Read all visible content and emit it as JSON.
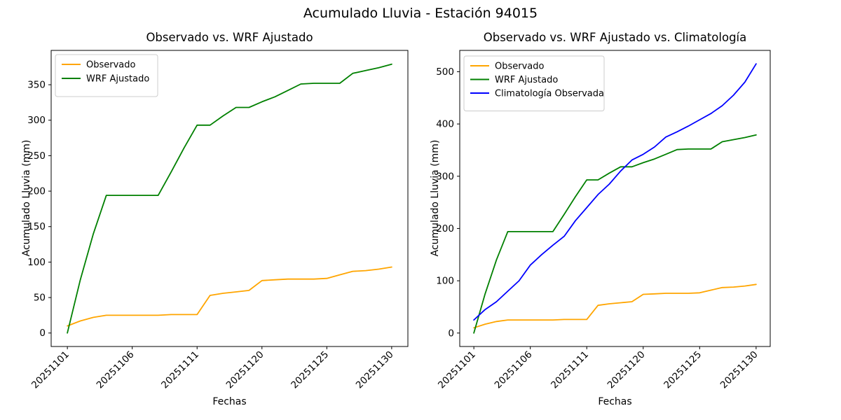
{
  "figure": {
    "suptitle": "Acumulado Lluvia - Estación 94015"
  },
  "colors": {
    "observado": "#ffa500",
    "wrf_ajustado": "#008000",
    "climatologia": "#0000ff",
    "spine": "#000000",
    "legend_border": "#cccccc",
    "background": "#ffffff"
  },
  "chart_data": [
    {
      "type": "line",
      "title": "Observado vs. WRF Ajustado",
      "xlabel": "Fechas",
      "ylabel": "Acumulado Lluvia (mm)",
      "x_type": "category",
      "x_count": 26,
      "xtick_positions": [
        0,
        5,
        10,
        15,
        20,
        25
      ],
      "xtick_labels": [
        "20251101",
        "20251106",
        "20251111",
        "20251120",
        "20251125",
        "20251130"
      ],
      "xtick_rotation": 45,
      "yticks": [
        0,
        50,
        100,
        150,
        200,
        250,
        300,
        350
      ],
      "grid": false,
      "legend_position": "upper left",
      "series": [
        {
          "name": "Observado",
          "color": "#ffa500",
          "values": [
            10,
            17,
            22,
            25,
            25,
            25,
            25,
            25,
            26,
            26,
            26,
            53,
            56,
            58,
            60,
            74,
            75,
            76,
            76,
            76,
            77,
            82,
            87,
            88,
            90,
            93
          ]
        },
        {
          "name": "WRF Ajustado",
          "color": "#008000",
          "values": [
            0,
            75,
            140,
            194,
            194,
            194,
            194,
            194,
            227,
            261,
            293,
            293,
            306,
            318,
            318,
            326,
            333,
            342,
            351,
            352,
            352,
            352,
            366,
            370,
            374,
            379
          ]
        }
      ]
    },
    {
      "type": "line",
      "title": "Observado vs. WRF Ajustado vs. Climatología",
      "xlabel": "Fechas",
      "ylabel": "Acumulado Lluvia (mm)",
      "x_type": "category",
      "x_count": 26,
      "xtick_positions": [
        0,
        5,
        10,
        15,
        20,
        25
      ],
      "xtick_labels": [
        "20251101",
        "20251106",
        "20251111",
        "20251120",
        "20251125",
        "20251130"
      ],
      "xtick_rotation": 45,
      "yticks": [
        0,
        100,
        200,
        300,
        400,
        500
      ],
      "grid": false,
      "legend_position": "upper left",
      "series": [
        {
          "name": "Observado",
          "color": "#ffa500",
          "values": [
            10,
            17,
            22,
            25,
            25,
            25,
            25,
            25,
            26,
            26,
            26,
            53,
            56,
            58,
            60,
            74,
            75,
            76,
            76,
            76,
            77,
            82,
            87,
            88,
            90,
            93
          ]
        },
        {
          "name": "WRF Ajustado",
          "color": "#008000",
          "values": [
            0,
            75,
            140,
            194,
            194,
            194,
            194,
            194,
            227,
            261,
            293,
            293,
            306,
            318,
            318,
            326,
            333,
            342,
            351,
            352,
            352,
            352,
            366,
            370,
            374,
            379
          ]
        },
        {
          "name": "Climatología Observada",
          "color": "#0000ff",
          "values": [
            25,
            45,
            60,
            80,
            100,
            130,
            150,
            168,
            185,
            215,
            240,
            265,
            285,
            310,
            331,
            342,
            356,
            375,
            385,
            396,
            408,
            420,
            435,
            455,
            480,
            515
          ]
        }
      ]
    }
  ]
}
